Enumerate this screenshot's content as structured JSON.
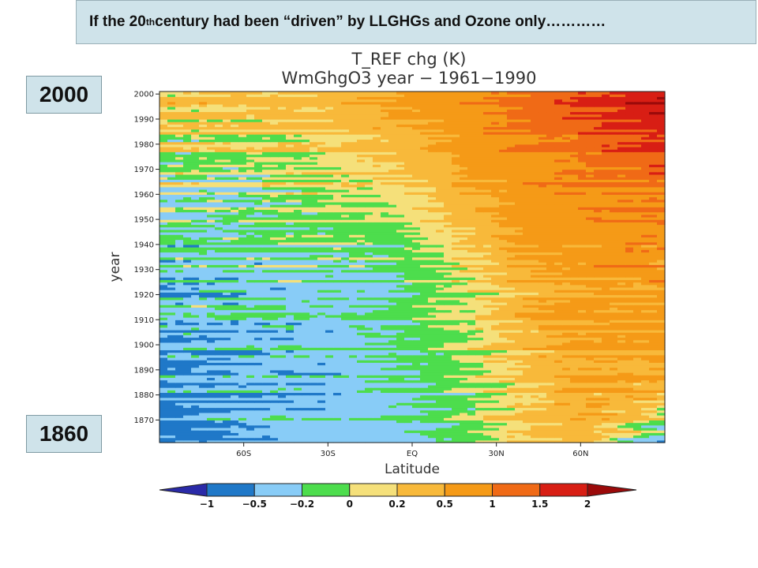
{
  "slide": {
    "title_part1": "If the 20",
    "title_sup": "th",
    "title_part2": " century had been “driven” by LLGHGs and Ozone only…………",
    "year_top": "2000",
    "year_bottom": "1860"
  },
  "chart_data": {
    "type": "heatmap",
    "title": "T_REF chg (K)",
    "subtitle": "WmGhgO3 year − 1961−1990",
    "xlabel": "Latitude",
    "ylabel": "year",
    "x_ticks": [
      "60S",
      "30S",
      "EQ",
      "30N",
      "60N"
    ],
    "x_tick_values": [
      -60,
      -30,
      0,
      30,
      60
    ],
    "xlim": [
      -90,
      90
    ],
    "y_ticks": [
      1870,
      1880,
      1890,
      1900,
      1910,
      1920,
      1930,
      1940,
      1950,
      1960,
      1970,
      1980,
      1990,
      2000
    ],
    "ylim": [
      1861,
      2001
    ],
    "colorbar": {
      "labels": [
        "−1",
        "−0.5",
        "−0.2",
        "0",
        "0.2",
        "0.5",
        "1",
        "1.5",
        "2"
      ],
      "levels": [
        -1,
        -0.5,
        -0.2,
        0,
        0.2,
        0.5,
        1,
        1.5,
        2
      ],
      "colors": [
        "#2a2aa8",
        "#1f78c8",
        "#88ccf7",
        "#4ddd4d",
        "#f5e07a",
        "#f8b93a",
        "#f59a17",
        "#f06a16",
        "#d81e14",
        "#9b0a0a"
      ]
    },
    "anomaly_profile_by_year": {
      "years": [
        1861,
        1880,
        1900,
        1920,
        1940,
        1960,
        1980,
        2000
      ],
      "latitudes": [
        -90,
        -60,
        -30,
        -10,
        0,
        20,
        40,
        60,
        90
      ],
      "values_K": [
        [
          -0.7,
          -0.5,
          -0.35,
          -0.3,
          -0.3,
          -0.1,
          0.15,
          0.3,
          -0.5
        ],
        [
          -0.55,
          -0.4,
          -0.35,
          -0.25,
          -0.2,
          -0.05,
          0.25,
          0.5,
          0.45
        ],
        [
          -0.45,
          -0.35,
          -0.35,
          -0.2,
          -0.15,
          0.0,
          0.3,
          0.55,
          0.6
        ],
        [
          -0.35,
          -0.3,
          -0.3,
          -0.25,
          -0.1,
          0.05,
          0.4,
          0.65,
          0.7
        ],
        [
          -0.25,
          -0.2,
          -0.1,
          -0.1,
          -0.05,
          0.2,
          0.55,
          0.75,
          0.85
        ],
        [
          -0.15,
          -0.1,
          0.05,
          0.1,
          0.15,
          0.45,
          0.75,
          0.9,
          1.1
        ],
        [
          0.05,
          0.05,
          0.15,
          0.3,
          0.35,
          0.7,
          0.95,
          1.15,
          1.6
        ],
        [
          0.3,
          0.3,
          0.35,
          0.55,
          0.6,
          0.9,
          1.2,
          1.55,
          2.1
        ]
      ]
    }
  }
}
